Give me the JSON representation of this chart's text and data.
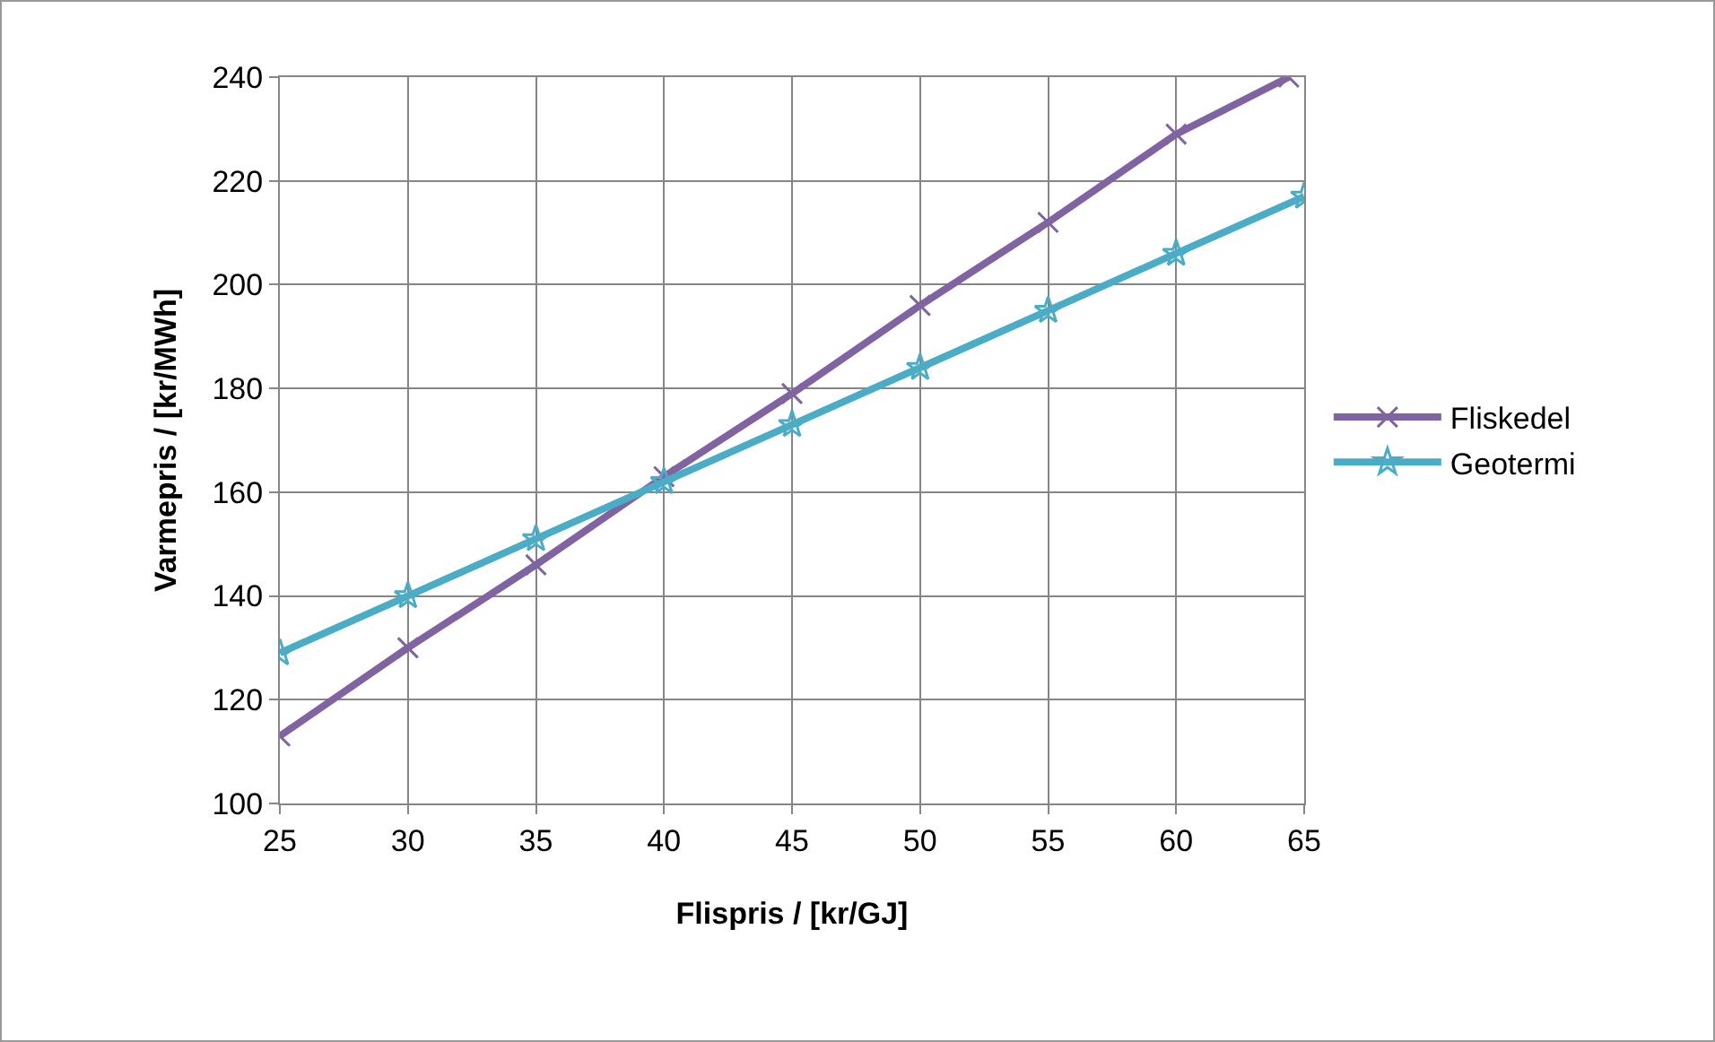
{
  "chart_data": {
    "type": "line",
    "xlabel": "Flispris / [kr/GJ]",
    "ylabel": "Varmepris / [kr/MWh]",
    "x": [
      25,
      30,
      35,
      40,
      45,
      50,
      55,
      60,
      65
    ],
    "series": [
      {
        "name": "Fliskedel",
        "color": "#8064a2",
        "marker": "cross",
        "x": [
          25,
          30,
          35,
          40,
          45,
          50,
          55,
          60,
          64.4
        ],
        "values": [
          113,
          130,
          146,
          163,
          179,
          196,
          212,
          229,
          240
        ]
      },
      {
        "name": "Geotermi",
        "color": "#4bacc6",
        "marker": "star",
        "values": [
          129,
          140,
          151,
          162,
          173,
          184,
          195,
          206,
          217
        ]
      }
    ],
    "xlim": [
      25,
      65
    ],
    "xticks": [
      25,
      30,
      35,
      40,
      45,
      50,
      55,
      60,
      65
    ],
    "ylim": [
      100,
      240
    ],
    "yticks": [
      100,
      120,
      140,
      160,
      180,
      200,
      220,
      240
    ],
    "grid": true,
    "legend": "right",
    "line_style": "solid"
  }
}
